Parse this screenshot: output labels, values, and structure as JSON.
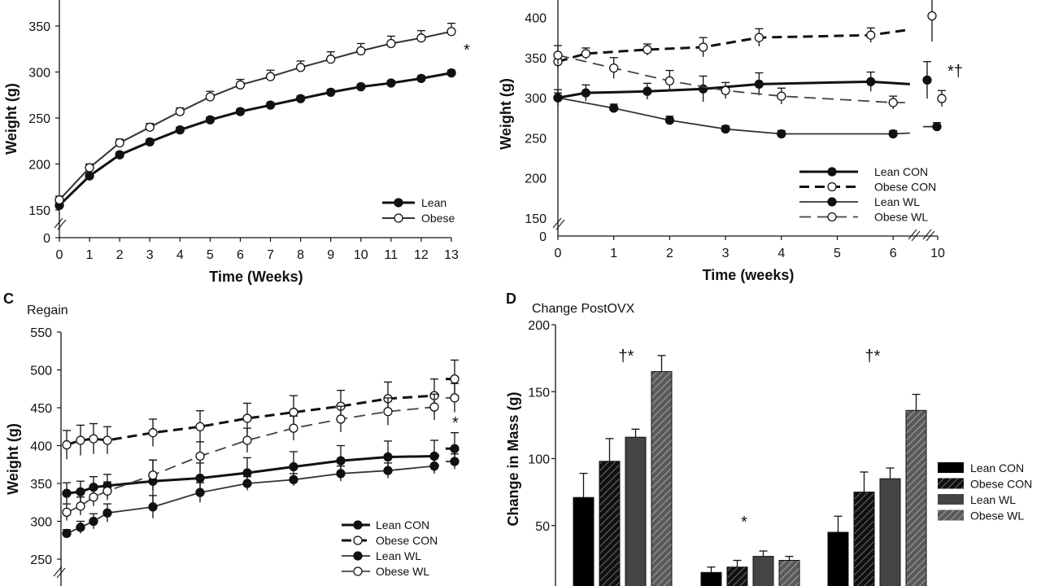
{
  "chart_data": [
    {
      "panel": "A",
      "type": "line",
      "xlabel": "Time (Weeks)",
      "ylabel": "Weight (g)",
      "x": [
        0,
        1,
        2,
        3,
        4,
        5,
        6,
        7,
        8,
        9,
        10,
        11,
        12,
        13
      ],
      "xticks": [
        "0",
        "1",
        "2",
        "3",
        "4",
        "5",
        "6",
        "7",
        "8",
        "9",
        "10",
        "11",
        "12",
        "13"
      ],
      "yticks": [
        "0",
        "150",
        "200",
        "250",
        "300",
        "350"
      ],
      "ylim": [
        150,
        380
      ],
      "y_axis_break": true,
      "annotation": "*",
      "series": [
        {
          "name": "Lean",
          "marker": "filled",
          "line": "solid-thick",
          "values": [
            155,
            187,
            210,
            224,
            237,
            248,
            257,
            264,
            271,
            278,
            284,
            288,
            293,
            299
          ],
          "error": [
            3,
            3,
            3,
            3,
            3,
            3,
            3,
            3,
            3,
            3,
            3,
            3,
            3,
            3
          ]
        },
        {
          "name": "Obese",
          "marker": "open",
          "line": "solid",
          "values": [
            161,
            196,
            223,
            240,
            257,
            273,
            286,
            295,
            305,
            314,
            323,
            331,
            337,
            344
          ],
          "error": [
            4,
            4,
            4,
            4,
            4,
            6,
            6,
            7,
            7,
            8,
            8,
            8,
            8,
            9
          ]
        }
      ],
      "legend_placement": "bottom-right"
    },
    {
      "panel": "B",
      "type": "line",
      "xlabel": "Time (weeks)",
      "ylabel": "Weight (g)",
      "xticks": [
        "0",
        "1",
        "2",
        "3",
        "4",
        "5",
        "6",
        "10"
      ],
      "yticks": [
        "0",
        "150",
        "200",
        "250",
        "300",
        "350",
        "400"
      ],
      "ylim": [
        150,
        425
      ],
      "y_axis_break": true,
      "x_axis_break": true,
      "annotation": "*†",
      "series": [
        {
          "name": "Lean CON",
          "marker": "filled",
          "line": "solid-thick",
          "x": [
            0,
            0.5,
            1.6,
            2.6,
            3.6,
            5.6
          ],
          "values": [
            300,
            306,
            308,
            311,
            317,
            320
          ],
          "error": [
            10,
            10,
            10,
            16,
            14,
            12
          ],
          "line_end": 317,
          "final_x": 10,
          "final_value": 322,
          "final_error": 23
        },
        {
          "name": "Obese CON",
          "marker": "open",
          "line": "dashed-thick",
          "x": [
            0,
            0.5,
            1.6,
            2.6,
            3.6,
            5.6
          ],
          "values": [
            345,
            355,
            360,
            363,
            375,
            378
          ],
          "error": [
            8,
            7,
            7,
            12,
            11,
            9
          ],
          "line_end": 385,
          "final_x": 10,
          "final_value": 402,
          "final_error": 32
        },
        {
          "name": "Lean WL",
          "marker": "filled",
          "line": "solid",
          "x": [
            0,
            1,
            2,
            3,
            4,
            6
          ],
          "values": [
            300,
            287,
            272,
            261,
            255,
            255
          ],
          "error": [
            6,
            5,
            5,
            4,
            4,
            4
          ],
          "line_end": 256,
          "final_x": 10,
          "final_value": 264,
          "final_error": 5
        },
        {
          "name": "Obese WL",
          "marker": "open",
          "line": "dashed",
          "x": [
            0,
            1,
            2,
            3,
            4,
            6
          ],
          "values": [
            353,
            337,
            321,
            309,
            302,
            294
          ],
          "error": [
            12,
            13,
            13,
            10,
            10,
            8
          ],
          "line_end": 294,
          "final_x": 10,
          "final_value": 299,
          "final_error": 10
        }
      ],
      "legend_placement": "bottom-right"
    },
    {
      "panel": "C",
      "panel_label": "C",
      "title": "Regain",
      "type": "line",
      "ylabel": "Weight (g)",
      "yticks": [
        "250",
        "300",
        "350",
        "400",
        "450",
        "500",
        "550"
      ],
      "ylim": [
        250,
        550
      ],
      "y_axis_break": true,
      "x_axis_break": true,
      "annotation": "*",
      "series": [
        {
          "name": "Lean CON",
          "marker": "filled",
          "line": "solid-thick",
          "values": [
            337,
            339,
            345,
            347,
            353,
            357,
            364,
            372,
            380,
            385,
            386,
            396
          ],
          "error": [
            14,
            14,
            14,
            15,
            28,
            20,
            20,
            20,
            20,
            21,
            21,
            21
          ]
        },
        {
          "name": "Obese CON",
          "marker": "open",
          "line": "dashed-thick",
          "values": [
            401,
            407,
            409,
            407,
            417,
            425,
            436,
            444,
            452,
            462,
            466,
            488
          ],
          "error": [
            19,
            20,
            20,
            18,
            18,
            21,
            20,
            22,
            21,
            22,
            22,
            25
          ]
        },
        {
          "name": "Lean WL",
          "marker": "filled",
          "line": "solid",
          "values": [
            284,
            292,
            300,
            311,
            319,
            338,
            350,
            355,
            363,
            367,
            373,
            379
          ],
          "error": [
            5,
            8,
            10,
            12,
            15,
            13,
            9,
            8,
            10,
            10,
            10,
            10
          ]
        },
        {
          "name": "Obese WL",
          "marker": "open",
          "line": "dashed",
          "values": [
            312,
            320,
            332,
            340,
            361,
            386,
            407,
            423,
            435,
            445,
            451,
            463
          ],
          "error": [
            11,
            12,
            12,
            12,
            20,
            19,
            16,
            16,
            17,
            18,
            17,
            19
          ]
        }
      ],
      "legend_placement": "bottom-right"
    },
    {
      "panel": "D",
      "panel_label": "D",
      "title": "Change PostOVX",
      "type": "bar",
      "ylabel": "Change in Mass (g)",
      "yticks": [
        "50",
        "100",
        "150",
        "200"
      ],
      "ylim": [
        0,
        200
      ],
      "group_annotations": [
        "†*",
        "*",
        "†*"
      ],
      "series": [
        {
          "name": "Lean CON",
          "color": "#000000",
          "hatch": false,
          "values": [
            71,
            15,
            45
          ],
          "error": [
            18,
            4,
            12
          ]
        },
        {
          "name": "Obese CON",
          "color": "#111111",
          "hatch": true,
          "values": [
            98,
            19,
            75
          ],
          "error": [
            17,
            5,
            15
          ]
        },
        {
          "name": "Lean WL",
          "color": "#444444",
          "hatch": false,
          "values": [
            116,
            27,
            85
          ],
          "error": [
            6,
            4,
            8
          ]
        },
        {
          "name": "Obese WL",
          "color": "#666666",
          "hatch": true,
          "values": [
            165,
            24,
            136
          ],
          "error": [
            12,
            3,
            12
          ]
        }
      ],
      "legend_placement": "right"
    }
  ]
}
